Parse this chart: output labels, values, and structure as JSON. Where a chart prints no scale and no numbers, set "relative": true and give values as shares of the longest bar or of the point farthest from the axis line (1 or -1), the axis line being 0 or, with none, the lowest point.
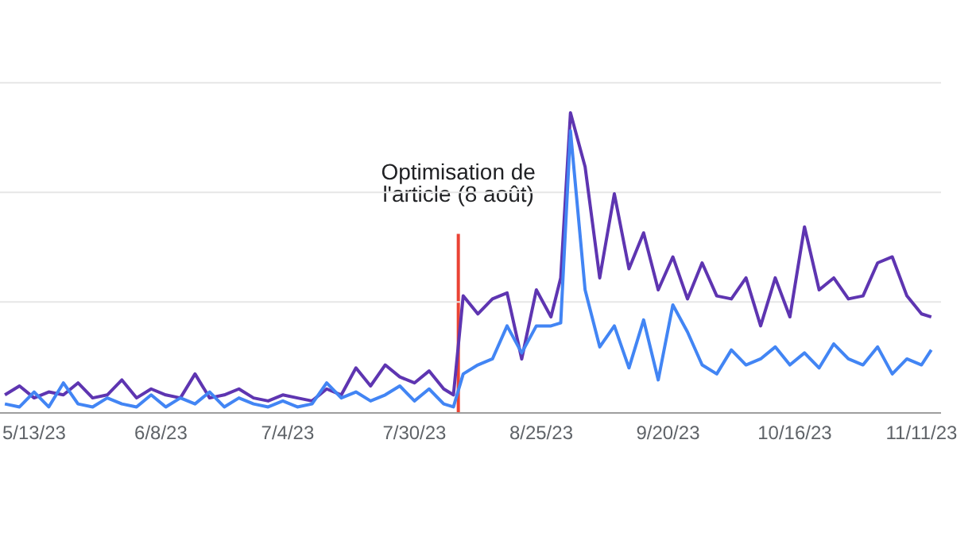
{
  "chart_data": {
    "type": "line",
    "relative": true,
    "marker": "none",
    "line_style": "solid",
    "x": [
      "2023-05-07",
      "2023-05-10",
      "2023-05-13",
      "2023-05-16",
      "2023-05-19",
      "2023-05-22",
      "2023-05-25",
      "2023-05-28",
      "2023-05-31",
      "2023-06-03",
      "2023-06-06",
      "2023-06-09",
      "2023-06-12",
      "2023-06-15",
      "2023-06-18",
      "2023-06-21",
      "2023-06-24",
      "2023-06-27",
      "2023-06-30",
      "2023-07-03",
      "2023-07-06",
      "2023-07-09",
      "2023-07-12",
      "2023-07-15",
      "2023-07-18",
      "2023-07-21",
      "2023-07-24",
      "2023-07-27",
      "2023-07-30",
      "2023-08-02",
      "2023-08-05",
      "2023-08-07",
      "2023-08-09",
      "2023-08-12",
      "2023-08-15",
      "2023-08-18",
      "2023-08-21",
      "2023-08-24",
      "2023-08-27",
      "2023-08-29",
      "2023-08-31",
      "2023-09-03",
      "2023-09-06",
      "2023-09-09",
      "2023-09-12",
      "2023-09-15",
      "2023-09-18",
      "2023-09-21",
      "2023-09-24",
      "2023-09-27",
      "2023-09-30",
      "2023-10-03",
      "2023-10-06",
      "2023-10-09",
      "2023-10-12",
      "2023-10-15",
      "2023-10-18",
      "2023-10-21",
      "2023-10-24",
      "2023-10-27",
      "2023-10-30",
      "2023-11-02",
      "2023-11-05",
      "2023-11-08",
      "2023-11-11",
      "2023-11-13"
    ],
    "xlim": [
      "2023-05-06",
      "2023-11-15"
    ],
    "xticks": [
      {
        "value": "2023-05-13",
        "label": "5/13/23"
      },
      {
        "value": "2023-06-08",
        "label": "6/8/23"
      },
      {
        "value": "2023-07-04",
        "label": "7/4/23"
      },
      {
        "value": "2023-07-30",
        "label": "7/30/23"
      },
      {
        "value": "2023-08-25",
        "label": "8/25/23"
      },
      {
        "value": "2023-09-20",
        "label": "9/20/23"
      },
      {
        "value": "2023-10-16",
        "label": "10/16/23"
      },
      {
        "value": "2023-11-11",
        "label": "11/11/23"
      }
    ],
    "series": [
      {
        "color": "#5e35b1",
        "values": [
          0.06,
          0.09,
          0.05,
          0.07,
          0.06,
          0.1,
          0.05,
          0.06,
          0.11,
          0.05,
          0.08,
          0.06,
          0.05,
          0.13,
          0.05,
          0.06,
          0.08,
          0.05,
          0.04,
          0.06,
          0.05,
          0.04,
          0.08,
          0.06,
          0.15,
          0.09,
          0.16,
          0.12,
          0.1,
          0.14,
          0.08,
          0.06,
          0.39,
          0.33,
          0.38,
          0.4,
          0.18,
          0.41,
          0.32,
          0.45,
          1.0,
          0.82,
          0.45,
          0.73,
          0.48,
          0.6,
          0.41,
          0.52,
          0.38,
          0.5,
          0.39,
          0.38,
          0.45,
          0.29,
          0.45,
          0.32,
          0.62,
          0.41,
          0.45,
          0.38,
          0.39,
          0.5,
          0.52,
          0.39,
          0.33,
          0.32
        ]
      },
      {
        "color": "#4285f4",
        "values": [
          0.03,
          0.02,
          0.07,
          0.02,
          0.1,
          0.03,
          0.02,
          0.05,
          0.03,
          0.02,
          0.06,
          0.02,
          0.05,
          0.03,
          0.07,
          0.02,
          0.05,
          0.03,
          0.02,
          0.04,
          0.02,
          0.03,
          0.1,
          0.05,
          0.07,
          0.04,
          0.06,
          0.09,
          0.04,
          0.08,
          0.03,
          0.02,
          0.13,
          0.16,
          0.18,
          0.29,
          0.2,
          0.29,
          0.29,
          0.3,
          0.94,
          0.41,
          0.22,
          0.29,
          0.15,
          0.31,
          0.11,
          0.36,
          0.27,
          0.16,
          0.13,
          0.21,
          0.16,
          0.18,
          0.22,
          0.16,
          0.2,
          0.15,
          0.23,
          0.18,
          0.16,
          0.22,
          0.13,
          0.18,
          0.16,
          0.21
        ]
      }
    ],
    "ref_lines": [
      {
        "axis": "x",
        "value": "2023-08-08",
        "label": "Optimisation de l'article (8 août)",
        "color": "#ea4335"
      },
      {
        "axis": "y",
        "value": 0.37,
        "color": "#e6e6e6"
      },
      {
        "axis": "y",
        "value": 0.735,
        "color": "#e6e6e6"
      },
      {
        "axis": "y",
        "value": 1.1,
        "color": "#e6e6e6"
      }
    ]
  }
}
